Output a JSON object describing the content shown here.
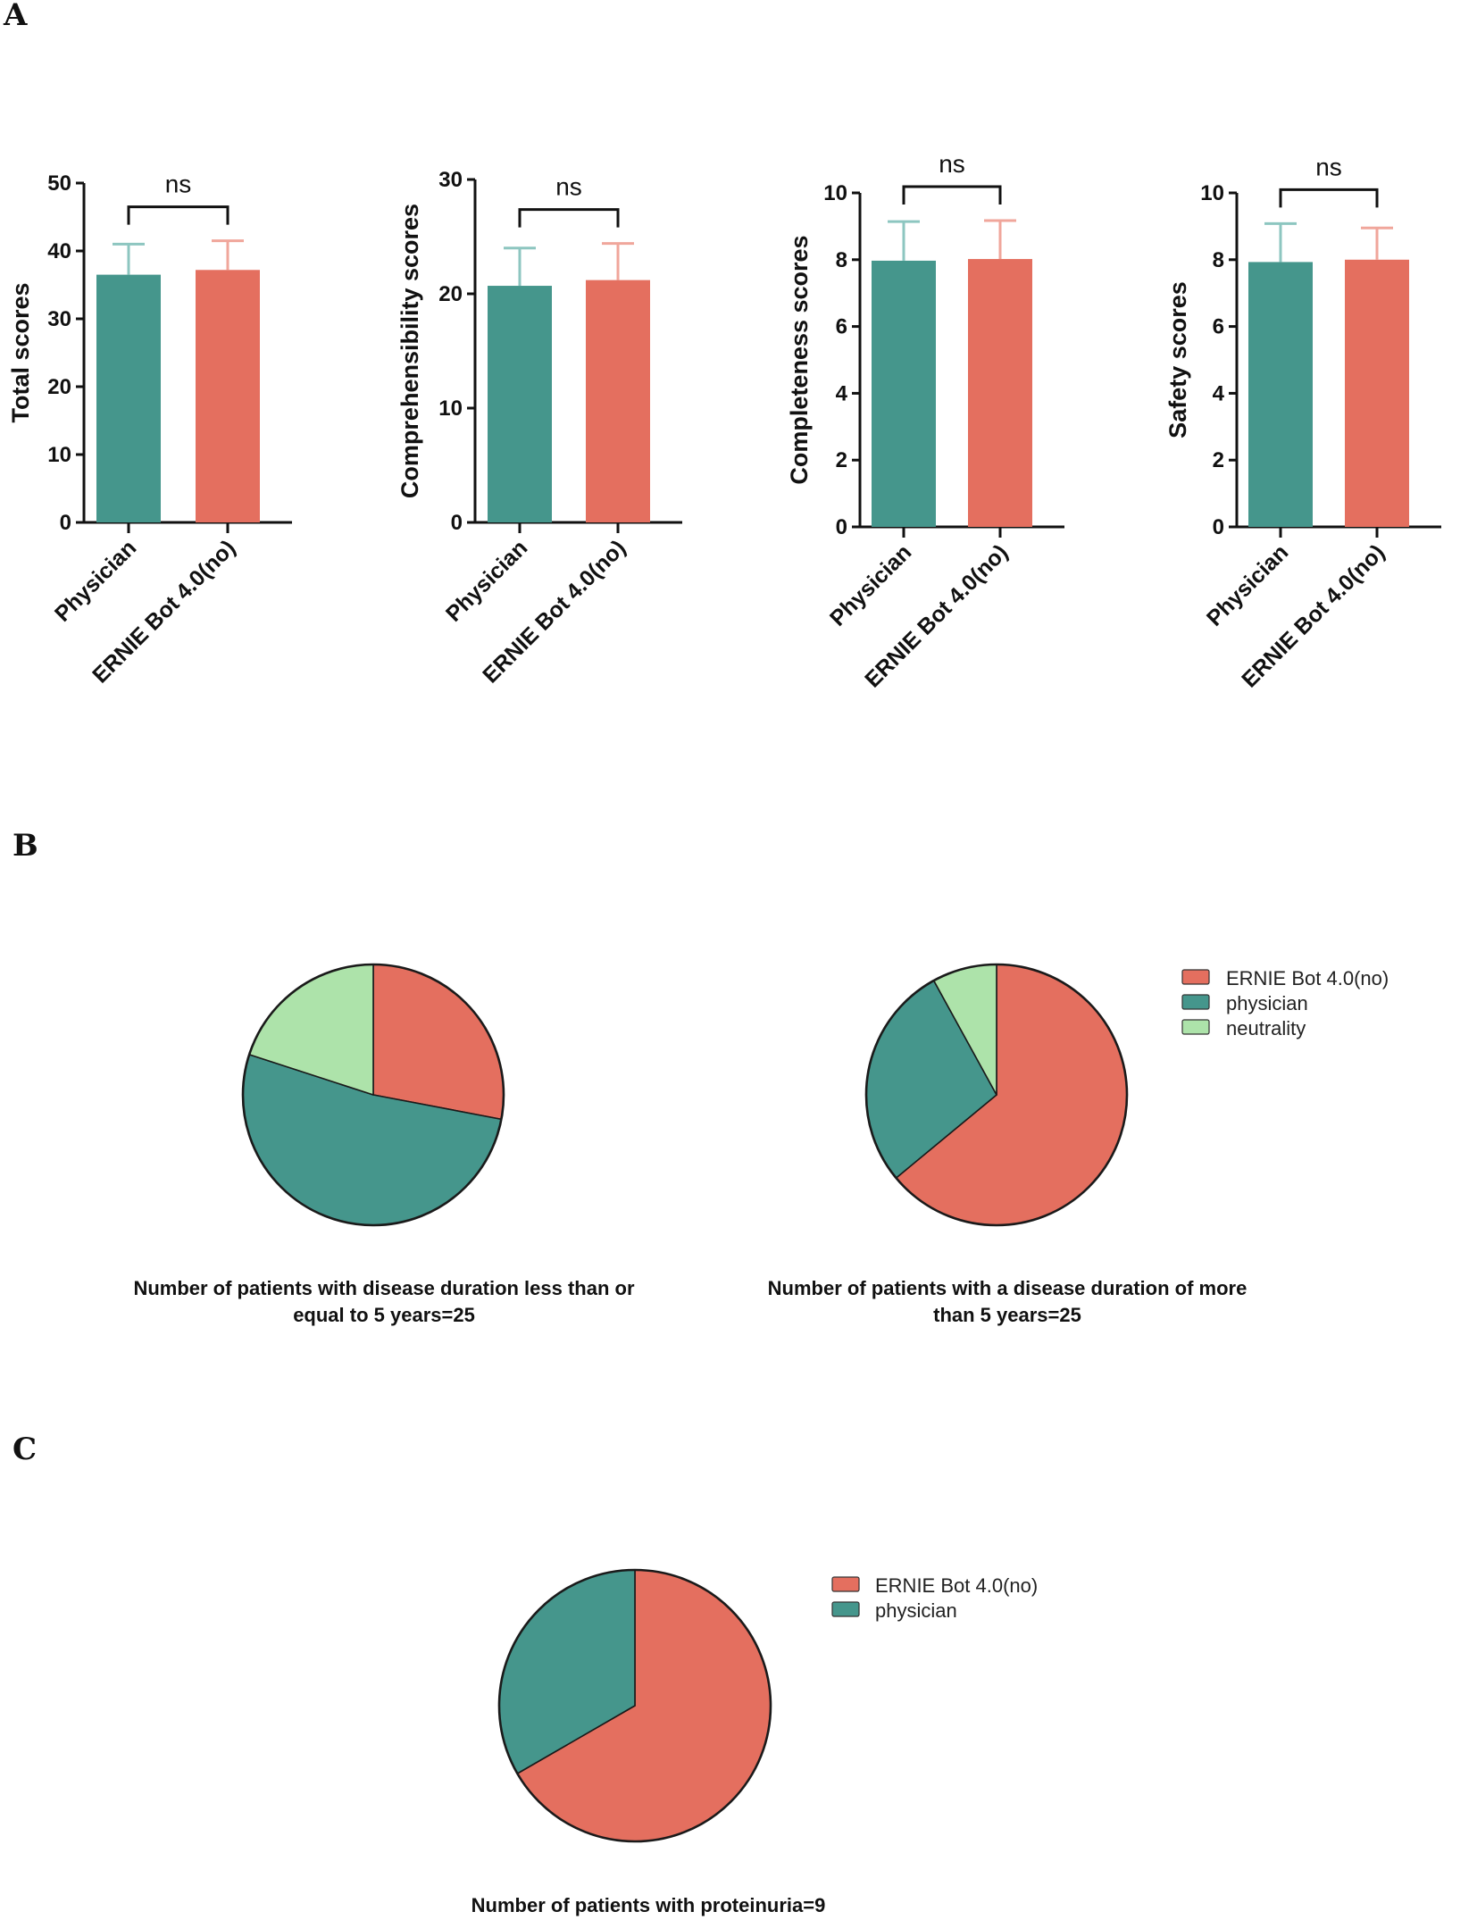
{
  "panels": {
    "a": {
      "letter": "A"
    },
    "b": {
      "letter": "B"
    },
    "c": {
      "letter": "C"
    }
  },
  "colors": {
    "physician": "#45968c",
    "ernie": "#e46f5f",
    "neutrality": "#ade3aa",
    "physician_err": "#8dc6c0",
    "ernie_err": "#f0a69b",
    "axis": "#111111"
  },
  "chart_data": [
    {
      "type": "bar",
      "panel": "A",
      "ylabel": "Total scores",
      "categories": [
        "Physician",
        "ERNIE Bot 4.0(no)"
      ],
      "values": [
        36.5,
        37.2
      ],
      "errors": [
        4.5,
        4.3
      ],
      "ylim": [
        0,
        50
      ],
      "yticks": [
        0,
        10,
        20,
        30,
        40,
        50
      ],
      "significance": "ns"
    },
    {
      "type": "bar",
      "panel": "A",
      "ylabel": "Comprehensibility scores",
      "categories": [
        "Physician",
        "ERNIE Bot 4.0(no)"
      ],
      "values": [
        20.7,
        21.2
      ],
      "errors": [
        3.3,
        3.2
      ],
      "ylim": [
        0,
        30
      ],
      "yticks": [
        0,
        10,
        20,
        30
      ],
      "significance": "ns"
    },
    {
      "type": "bar",
      "panel": "A",
      "ylabel": "Completeness scores",
      "categories": [
        "Physician",
        "ERNIE Bot 4.0(no)"
      ],
      "values": [
        7.97,
        8.02
      ],
      "errors": [
        1.17,
        1.15
      ],
      "ylim": [
        0,
        10
      ],
      "yticks": [
        0,
        2,
        4,
        6,
        8,
        10
      ],
      "significance": "ns"
    },
    {
      "type": "bar",
      "panel": "A",
      "ylabel": "Safety scores",
      "categories": [
        "Physician",
        "ERNIE Bot 4.0(no)"
      ],
      "values": [
        7.93,
        8.0
      ],
      "errors": [
        1.15,
        0.95
      ],
      "ylim": [
        0,
        10
      ],
      "yticks": [
        0,
        2,
        4,
        6,
        8,
        10
      ],
      "significance": "ns"
    },
    {
      "type": "pie",
      "panel": "B",
      "caption_lines": [
        "Number of patients with disease duration less than or",
        "equal to 5 years=25"
      ],
      "labels": [
        "ERNIE Bot 4.0(no)",
        "physician",
        "neutrality"
      ],
      "values": [
        7,
        13,
        5
      ]
    },
    {
      "type": "pie",
      "panel": "B",
      "caption_lines": [
        "Number of patients with a disease duration of more",
        "than 5 years=25"
      ],
      "labels": [
        "ERNIE Bot 4.0(no)",
        "physician",
        "neutrality"
      ],
      "values": [
        16,
        7,
        2
      ]
    },
    {
      "type": "pie",
      "panel": "C",
      "caption_lines": [
        "Number of patients with proteinuria=9"
      ],
      "labels": [
        "ERNIE Bot 4.0(no)",
        "physician"
      ],
      "values": [
        6,
        3
      ]
    }
  ],
  "legends": {
    "b": [
      "ERNIE Bot 4.0(no)",
      "physician",
      "neutrality"
    ],
    "c": [
      "ERNIE Bot 4.0(no)",
      "physician"
    ]
  }
}
